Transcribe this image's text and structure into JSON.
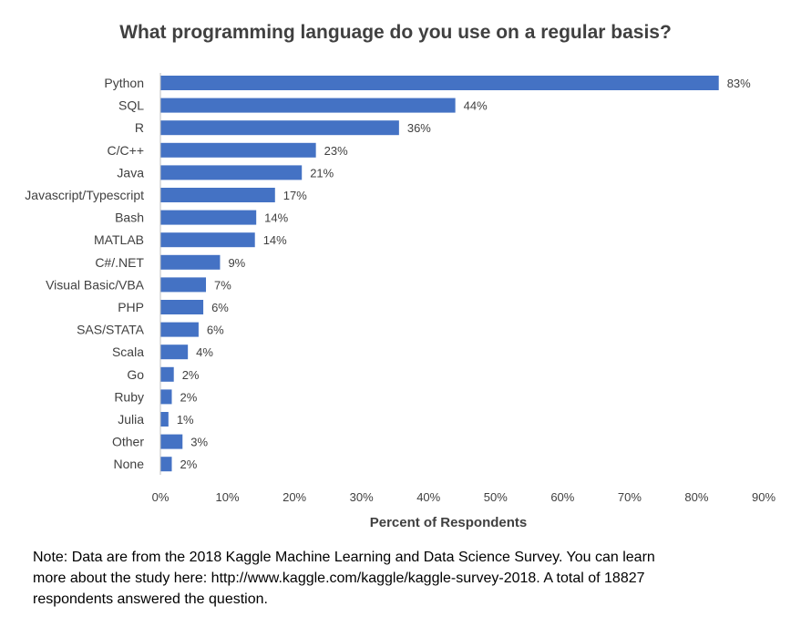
{
  "chart_data": {
    "type": "bar",
    "orientation": "horizontal",
    "title": "What programming language do you use on a regular basis?",
    "xlabel": "Percent of Respondents",
    "ylabel": "",
    "xlim": [
      0,
      90
    ],
    "x_ticks": [
      "0%",
      "10%",
      "20%",
      "30%",
      "40%",
      "50%",
      "60%",
      "70%",
      "80%",
      "90%"
    ],
    "grid": false,
    "bar_color": "#4472C4",
    "categories": [
      "Python",
      "SQL",
      "R",
      "C/C++",
      "Java",
      "Javascript/Typescript",
      "Bash",
      "MATLAB",
      "C#/.NET",
      "Visual Basic/VBA",
      "PHP",
      "SAS/STATA",
      "Scala",
      "Go",
      "Ruby",
      "Julia",
      "Other",
      "None"
    ],
    "values": [
      83.3,
      44,
      35.6,
      23.2,
      21.1,
      17.1,
      14.3,
      14.1,
      8.9,
      6.8,
      6.4,
      5.7,
      4.1,
      2.0,
      1.7,
      1.2,
      3.3,
      1.7
    ],
    "data_labels": [
      "83%",
      "44%",
      "36%",
      "23%",
      "21%",
      "17%",
      "14%",
      "14%",
      "9%",
      "7%",
      "6%",
      "6%",
      "4%",
      "2%",
      "2%",
      "1%",
      "3%",
      "2%"
    ]
  },
  "note": {
    "line1": "Note: Data are from the 2018 Kaggle Machine Learning and Data Science Survey. You can learn",
    "line2": "more about the study here: http://www.kaggle.com/kaggle/kaggle-survey-2018.  A total of 18827",
    "line3": "respondents answered the question."
  }
}
